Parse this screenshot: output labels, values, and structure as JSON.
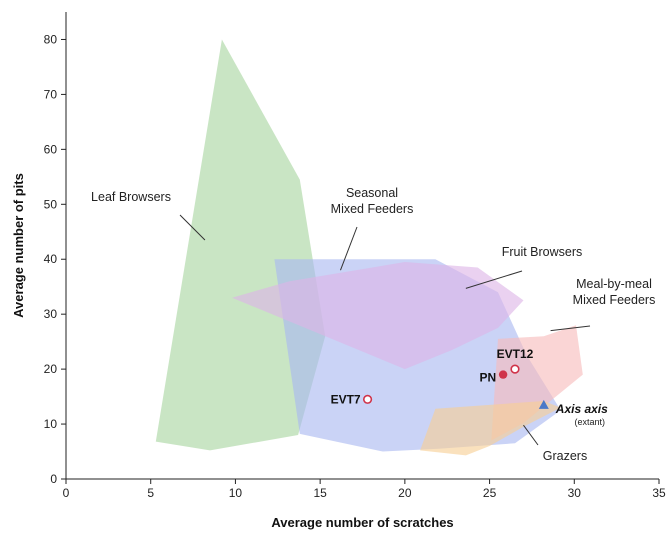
{
  "chart_data": {
    "type": "scatter",
    "title": "",
    "xlabel": "Average number of scratches",
    "ylabel": "Average number of pits",
    "xlim": [
      0,
      35
    ],
    "ylim": [
      0,
      85
    ],
    "xticks": [
      0,
      5,
      10,
      15,
      20,
      25,
      30,
      35
    ],
    "yticks": [
      0,
      10,
      20,
      30,
      40,
      50,
      60,
      70,
      80
    ],
    "grid": false,
    "regions": [
      {
        "name": "Leaf Browsers",
        "color": "#a8d5a0",
        "polygon": [
          [
            9.2,
            80
          ],
          [
            13.8,
            54.5
          ],
          [
            15.3,
            26
          ],
          [
            13.7,
            8
          ],
          [
            8.5,
            5.2
          ],
          [
            5.3,
            6.8
          ]
        ]
      },
      {
        "name": "Seasonal Mixed Feeders",
        "color": "#a9b8f0",
        "polygon": [
          [
            12.3,
            40
          ],
          [
            21.8,
            40
          ],
          [
            25.5,
            34
          ],
          [
            27.2,
            22.5
          ],
          [
            29.2,
            12.5
          ],
          [
            26.5,
            6.5
          ],
          [
            22,
            5.5
          ],
          [
            18.7,
            5
          ],
          [
            13.8,
            8.2
          ]
        ]
      },
      {
        "name": "Fruit Browsers",
        "color": "#ddb4e6",
        "polygon": [
          [
            9.8,
            33
          ],
          [
            13.2,
            36
          ],
          [
            20,
            39.5
          ],
          [
            24.3,
            38.5
          ],
          [
            27,
            32.5
          ],
          [
            25.5,
            27.5
          ],
          [
            22.8,
            23.5
          ],
          [
            20,
            20
          ]
        ]
      },
      {
        "name": "Meal-by-meal Mixed Feeders",
        "color": "#f7bcbc",
        "polygon": [
          [
            25.5,
            25.5
          ],
          [
            28.2,
            26
          ],
          [
            30.1,
            28
          ],
          [
            30.5,
            19
          ],
          [
            27,
            10.2
          ],
          [
            25.1,
            7
          ]
        ]
      },
      {
        "name": "Grazers",
        "color": "#f7ce95",
        "polygon": [
          [
            21.8,
            12.8
          ],
          [
            28.2,
            14.2
          ],
          [
            29.2,
            13
          ],
          [
            27,
            9.5
          ],
          [
            25,
            6
          ],
          [
            23.6,
            4.3
          ],
          [
            20.9,
            5.2
          ]
        ]
      }
    ],
    "points": [
      {
        "label": "EVT7",
        "x": 17.8,
        "y": 14.5,
        "marker": "open-circle",
        "color": "#d0344a"
      },
      {
        "label": "PN",
        "x": 25.8,
        "y": 19,
        "marker": "filled-circle",
        "color": "#d0344a"
      },
      {
        "label": "EVT12",
        "x": 26.5,
        "y": 20,
        "marker": "open-circle",
        "color": "#d0344a"
      },
      {
        "label": "Axis axis",
        "sublabel": "(extant)",
        "x": 28.2,
        "y": 13.5,
        "marker": "triangle",
        "color": "#4a78c8"
      }
    ],
    "annotations": [
      {
        "text": [
          "Leaf Browsers"
        ],
        "target": [
          8.2,
          43.5
        ]
      },
      {
        "text": [
          "Seasonal",
          "Mixed Feeders"
        ],
        "target": [
          16.2,
          38
        ]
      },
      {
        "text": [
          "Fruit Browsers"
        ],
        "target": [
          23.6,
          34.7
        ]
      },
      {
        "text": [
          "Meal-by-meal",
          "Mixed Feeders"
        ],
        "target": [
          28.6,
          27
        ]
      },
      {
        "text": [
          "Grazers"
        ],
        "target": [
          27,
          9.8
        ]
      }
    ]
  }
}
